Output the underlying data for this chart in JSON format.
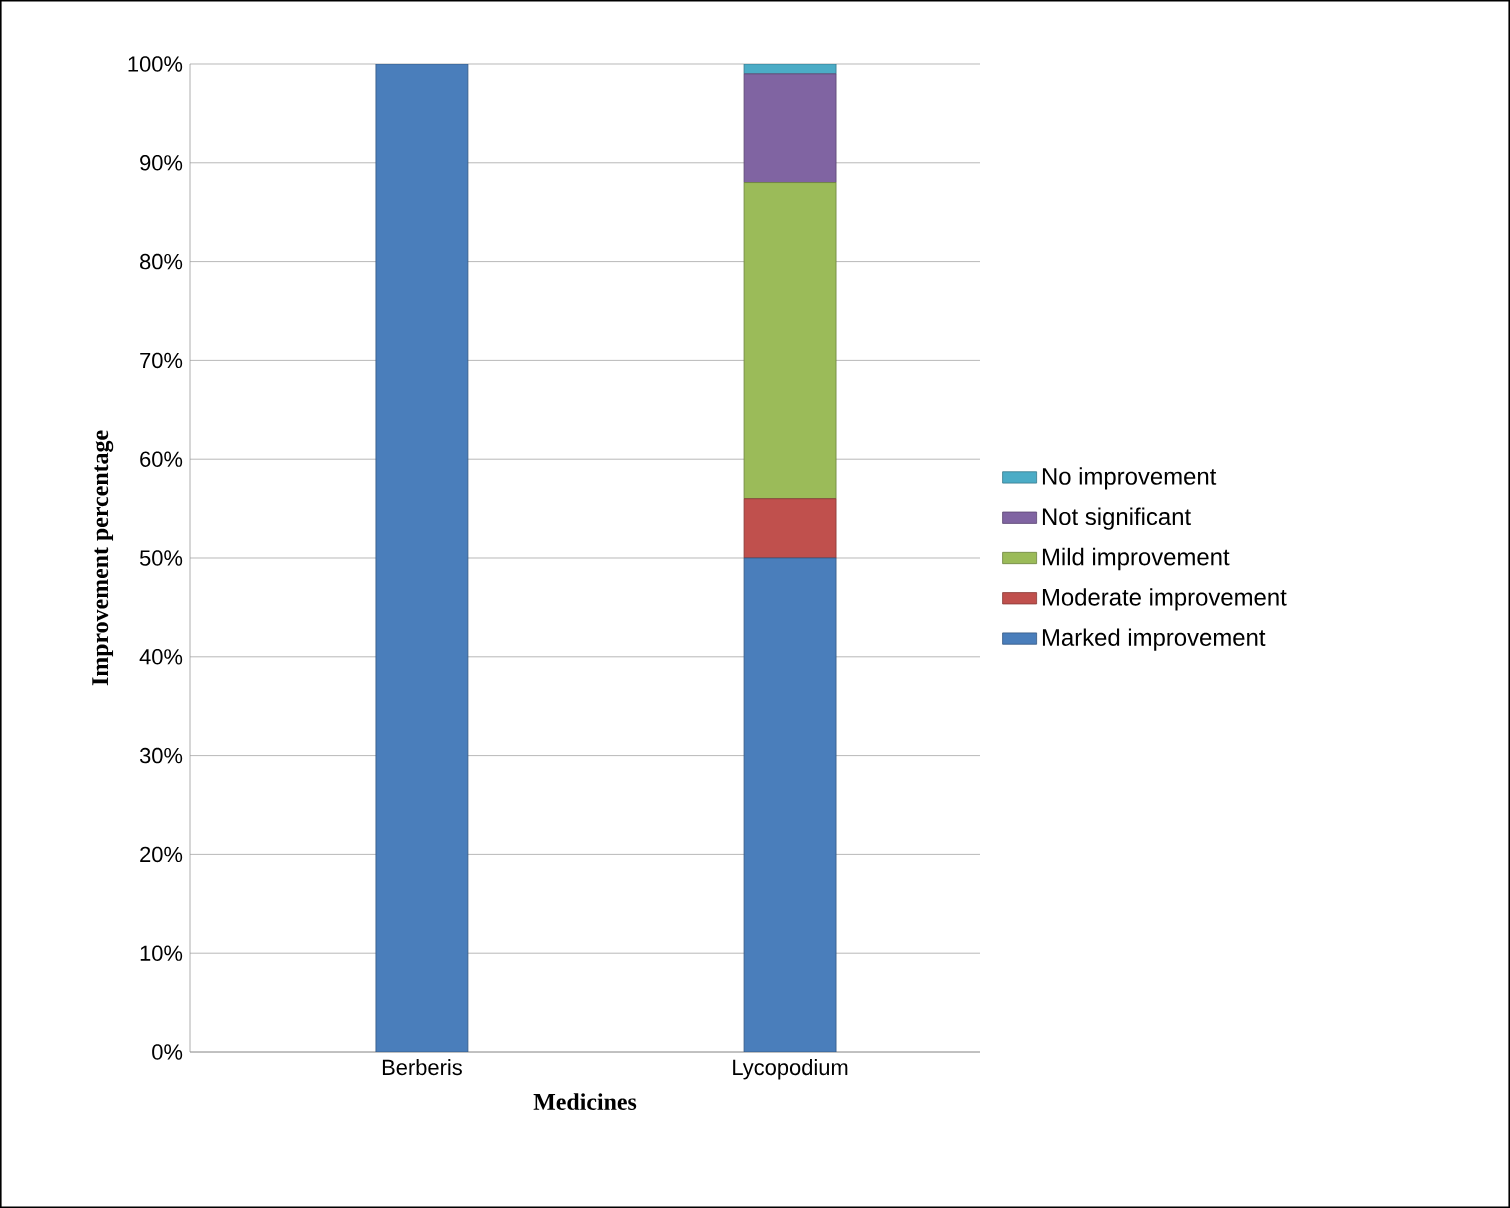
{
  "chart_data": {
    "type": "bar",
    "stacked": true,
    "xlabel": "Medicines",
    "ylabel": "Improvement  percentage",
    "categories": [
      "Berberis",
      "Lycopodium"
    ],
    "series": [
      {
        "name": "Marked improvement",
        "color": "#4a7ebb",
        "values": [
          100,
          50
        ]
      },
      {
        "name": "Moderate improvement",
        "color": "#c0504d",
        "values": [
          0,
          6
        ]
      },
      {
        "name": "Mild improvement",
        "color": "#9bbb59",
        "values": [
          0,
          32
        ]
      },
      {
        "name": "Not significant",
        "color": "#8064a2",
        "values": [
          0,
          11
        ]
      },
      {
        "name": "No improvement",
        "color": "#4bacc6",
        "values": [
          0,
          1
        ]
      }
    ],
    "ylim": [
      0,
      100
    ],
    "yticks": [
      {
        "value": 0,
        "label": "0%"
      },
      {
        "value": 10,
        "label": "10%"
      },
      {
        "value": 20,
        "label": "20%"
      },
      {
        "value": 30,
        "label": "30%"
      },
      {
        "value": 40,
        "label": "40%"
      },
      {
        "value": 50,
        "label": "50%"
      },
      {
        "value": 60,
        "label": "60%"
      },
      {
        "value": 70,
        "label": "70%"
      },
      {
        "value": 80,
        "label": "80%"
      },
      {
        "value": 90,
        "label": "90%"
      },
      {
        "value": 100,
        "label": "100%"
      }
    ],
    "grid": "y",
    "legend": "right"
  }
}
